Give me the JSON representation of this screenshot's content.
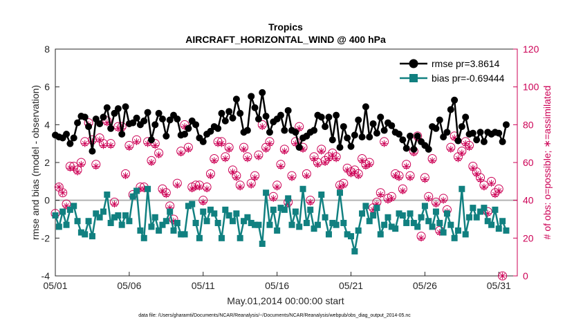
{
  "chart_data": {
    "type": "line",
    "title": "Tropics",
    "subtitle": "AIRCRAFT_HORIZONTAL_WIND @ 400 hPa",
    "xlabel": "May.01,2014 00:00:00 start",
    "ylabel": "rmse and bias (model - observation)",
    "ylabel_right": "# of obs: o=possible; ∗=assimilated",
    "footnote": "data file: /Users/gharamti/Documents/NCAR/Reanalysis/~/Documents/NCAR/Reanalysis/webpub/obs_diag_output_2014-05.nc",
    "x_ticks": [
      {
        "day": 1,
        "label": "05/01"
      },
      {
        "day": 6,
        "label": "05/06"
      },
      {
        "day": 11,
        "label": "05/11"
      },
      {
        "day": 16,
        "label": "05/16"
      },
      {
        "day": 21,
        "label": "05/21"
      },
      {
        "day": 26,
        "label": "05/26"
      },
      {
        "day": 31,
        "label": "05/31"
      }
    ],
    "xlim": [
      1,
      32.25
    ],
    "ylim": [
      -4,
      8
    ],
    "yticks": [
      -4,
      -2,
      0,
      2,
      4,
      6,
      8
    ],
    "ylim_right": [
      0,
      120
    ],
    "yticks_right": [
      0,
      20,
      40,
      60,
      80,
      100,
      120
    ],
    "legend_position": "top-right",
    "grid": false,
    "time_step_days": 0.25,
    "series": [
      {
        "name": "rmse pr=3.8614",
        "color": "#000000",
        "marker": "circle",
        "values": [
          3.45,
          3.35,
          3.3,
          3.5,
          3.0,
          3.3,
          4.1,
          4.45,
          4.4,
          3.9,
          2.6,
          4.3,
          4.05,
          4.4,
          4.9,
          3.8,
          4.6,
          4.85,
          3.5,
          4.95,
          4.05,
          4.1,
          4.35,
          4.0,
          4.2,
          4.65,
          3.2,
          4.0,
          4.6,
          4.3,
          3.4,
          4.25,
          4.5,
          4.3,
          3.45,
          3.5,
          3.8,
          4.2,
          4.0,
          3.3,
          3.1,
          3.5,
          3.65,
          3.9,
          3.8,
          4.6,
          4.2,
          4.7,
          4.35,
          5.35,
          4.6,
          3.6,
          3.7,
          5.5,
          4.9,
          4.3,
          5.7,
          4.45,
          3.6,
          4.15,
          4.3,
          4.5,
          3.7,
          4.75,
          3.7,
          3.6,
          2.8,
          3.3,
          3.4,
          3.6,
          3.7,
          4.5,
          4.4,
          3.9,
          4.4,
          3.2,
          4.5,
          2.8,
          3.9,
          3.3,
          2.85,
          3.45,
          4.25,
          3.35,
          4.95,
          3.35,
          4.05,
          3.55,
          4.4,
          3.7,
          4.1,
          3.95,
          3.6,
          3.5,
          3.2,
          2.75,
          3.4,
          2.7,
          3.4,
          3.1,
          2.9,
          2.7,
          3.9,
          3.8,
          4.25,
          3.35,
          3.6,
          4.8,
          5.3,
          3.15,
          3.9,
          4.4,
          3.5,
          3.55,
          3.2,
          3.6,
          3.1,
          3.6,
          3.5,
          3.6,
          3.55,
          3.1,
          4.0
        ]
      },
      {
        "name": "bias pr=-0.69444",
        "color": "#118080",
        "marker": "square",
        "values": [
          -0.8,
          -1.4,
          -0.6,
          -1.3,
          -0.5,
          -0.3,
          -1.1,
          -1.7,
          -1.8,
          -1.1,
          -1.9,
          -0.7,
          -0.9,
          -0.6,
          0.3,
          -1.2,
          -0.9,
          -0.8,
          -1.3,
          -0.8,
          -1.1,
          0.2,
          0.5,
          -1.6,
          -2.0,
          0.6,
          -1.4,
          -0.9,
          -1.6,
          -1.3,
          -1.1,
          -0.6,
          -1.6,
          -1.2,
          -1.8,
          -1.8,
          -0.3,
          -0.2,
          -1.2,
          -2.0,
          -0.6,
          -1.1,
          -0.5,
          -0.7,
          -1.2,
          -2.0,
          -0.5,
          -0.8,
          -1.1,
          -0.7,
          -2.0,
          -1.1,
          -0.9,
          -1.2,
          -1.3,
          -1.3,
          -2.3,
          0.4,
          -1.3,
          -0.5,
          -1.6,
          -0.4,
          -0.5,
          0.1,
          -1.3,
          -0.6,
          -1.4,
          0.6,
          -1.2,
          -0.5,
          -1.5,
          -1.3,
          0.3,
          -0.9,
          -1.8,
          -1.2,
          -1.3,
          0.4,
          -1.2,
          -1.8,
          -1.9,
          -2.7,
          -1.6,
          -0.7,
          -0.3,
          -1.1,
          -0.8,
          -0.4,
          -1.8,
          -1.3,
          -0.9,
          -1.4,
          -1.5,
          -0.7,
          -0.8,
          -1.2,
          -0.7,
          -1.2,
          -1.4,
          -0.9,
          -0.3,
          -1.1,
          -1.4,
          -0.6,
          -1.2,
          -1.7,
          -0.7,
          -1.3,
          -2.0,
          -1.6,
          0.6,
          -1.8,
          -0.9,
          -0.4,
          -0.9,
          -0.6,
          -0.4,
          -1.1,
          -1.3,
          -0.5,
          -1.5,
          -1.1,
          -1.6
        ]
      },
      {
        "name": "possible",
        "axis": "right",
        "color": "#cc0055",
        "marker": "circle-open",
        "values": [
          33,
          47,
          44,
          38,
          58,
          58,
          56,
          60,
          71,
          81,
          72,
          59,
          73,
          70,
          82,
          70,
          39,
          79,
          79,
          54,
          69,
          43,
          72,
          47,
          47,
          71,
          61,
          70,
          65,
          46,
          44,
          37,
          30,
          49,
          66,
          80,
          68,
          47,
          48,
          48,
          40,
          47,
          54,
          62,
          71,
          71,
          63,
          68,
          56,
          53,
          48,
          68,
          63,
          49,
          53,
          64,
          80,
          68,
          71,
          42,
          48,
          59,
          67,
          39,
          53,
          71,
          79,
          68,
          54,
          40,
          63,
          60,
          67,
          61,
          63,
          65,
          63,
          48,
          49,
          57,
          55,
          56,
          54,
          62,
          59,
          60,
          36,
          39,
          44,
          71,
          41,
          42,
          54,
          53,
          46,
          59,
          53,
          66,
          74,
          21,
          52,
          42,
          62,
          39,
          24,
          41,
          35,
          68,
          74,
          63,
          66,
          71,
          69,
          58,
          55,
          52,
          48,
          34,
          50,
          44,
          46,
          0
        ]
      },
      {
        "name": "assimilated",
        "axis": "right",
        "color": "#cc0055",
        "marker": "star",
        "values": [
          32,
          47,
          44,
          37,
          57,
          57,
          55,
          59,
          70,
          80,
          71,
          58,
          72,
          69,
          81,
          69,
          38,
          78,
          78,
          53,
          68,
          42,
          71,
          46,
          46,
          70,
          60,
          69,
          64,
          45,
          43,
          36,
          29,
          48,
          65,
          79,
          67,
          46,
          47,
          47,
          39,
          46,
          53,
          61,
          70,
          70,
          62,
          67,
          55,
          52,
          47,
          67,
          62,
          48,
          52,
          63,
          79,
          67,
          70,
          41,
          47,
          58,
          66,
          38,
          52,
          70,
          78,
          67,
          53,
          39,
          62,
          59,
          66,
          60,
          62,
          64,
          62,
          47,
          48,
          56,
          54,
          55,
          53,
          61,
          58,
          59,
          35,
          38,
          43,
          70,
          40,
          41,
          53,
          52,
          45,
          58,
          52,
          65,
          73,
          20,
          51,
          41,
          61,
          38,
          23,
          40,
          34,
          67,
          73,
          62,
          65,
          70,
          68,
          57,
          54,
          51,
          47,
          33,
          49,
          43,
          45,
          0
        ]
      }
    ]
  }
}
